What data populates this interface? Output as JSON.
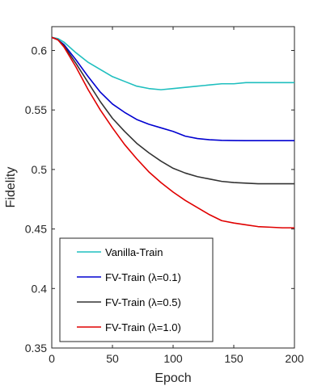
{
  "chart_data": {
    "type": "line",
    "title": "",
    "xlabel": "Epoch",
    "ylabel": "Fidelity",
    "xlim": [
      0,
      200
    ],
    "ylim": [
      0.35,
      0.62
    ],
    "xticks": [
      0,
      50,
      100,
      150,
      200
    ],
    "yticks": [
      0.35,
      0.4,
      0.45,
      0.5,
      0.55,
      0.6
    ],
    "ytick_labels": [
      "0.35",
      "0.4",
      "0.45",
      "0.5",
      "0.55",
      "0.6"
    ],
    "grid": false,
    "legend_position": "bottom-left",
    "series": [
      {
        "name": "Vanilla-Train",
        "color": "#1fbfbf",
        "x": [
          0,
          5,
          10,
          20,
          30,
          40,
          50,
          60,
          70,
          80,
          90,
          100,
          110,
          120,
          130,
          140,
          150,
          160,
          170,
          180,
          190,
          200
        ],
        "y": [
          0.611,
          0.61,
          0.607,
          0.598,
          0.59,
          0.584,
          0.578,
          0.574,
          0.57,
          0.568,
          0.567,
          0.568,
          0.569,
          0.57,
          0.571,
          0.572,
          0.572,
          0.573,
          0.573,
          0.573,
          0.573,
          0.573
        ]
      },
      {
        "name": "FV-Train (λ=0.1)",
        "color": "#0000d0",
        "x": [
          0,
          5,
          10,
          20,
          30,
          40,
          50,
          60,
          70,
          80,
          90,
          100,
          110,
          120,
          130,
          140,
          150,
          160,
          170,
          180,
          190,
          200
        ],
        "y": [
          0.611,
          0.609,
          0.605,
          0.592,
          0.578,
          0.565,
          0.555,
          0.548,
          0.542,
          0.538,
          0.535,
          0.532,
          0.528,
          0.526,
          0.525,
          0.5245,
          0.5243,
          0.5242,
          0.5242,
          0.5242,
          0.5242,
          0.5242
        ]
      },
      {
        "name": "FV-Train (λ=0.5)",
        "color": "#333333",
        "x": [
          0,
          5,
          10,
          20,
          30,
          40,
          50,
          60,
          70,
          80,
          90,
          100,
          110,
          120,
          130,
          140,
          150,
          160,
          170,
          180,
          190,
          200
        ],
        "y": [
          0.611,
          0.609,
          0.604,
          0.589,
          0.573,
          0.557,
          0.543,
          0.532,
          0.522,
          0.514,
          0.507,
          0.501,
          0.497,
          0.494,
          0.492,
          0.49,
          0.489,
          0.4885,
          0.488,
          0.488,
          0.488,
          0.488
        ]
      },
      {
        "name": "FV-Train (λ=1.0)",
        "color": "#e00000",
        "x": [
          0,
          5,
          10,
          20,
          30,
          40,
          50,
          60,
          70,
          80,
          90,
          100,
          110,
          120,
          130,
          140,
          150,
          160,
          170,
          180,
          190,
          200
        ],
        "y": [
          0.611,
          0.609,
          0.603,
          0.586,
          0.567,
          0.55,
          0.535,
          0.521,
          0.509,
          0.498,
          0.489,
          0.481,
          0.474,
          0.468,
          0.462,
          0.457,
          0.455,
          0.4535,
          0.452,
          0.4515,
          0.451,
          0.451
        ]
      }
    ]
  }
}
